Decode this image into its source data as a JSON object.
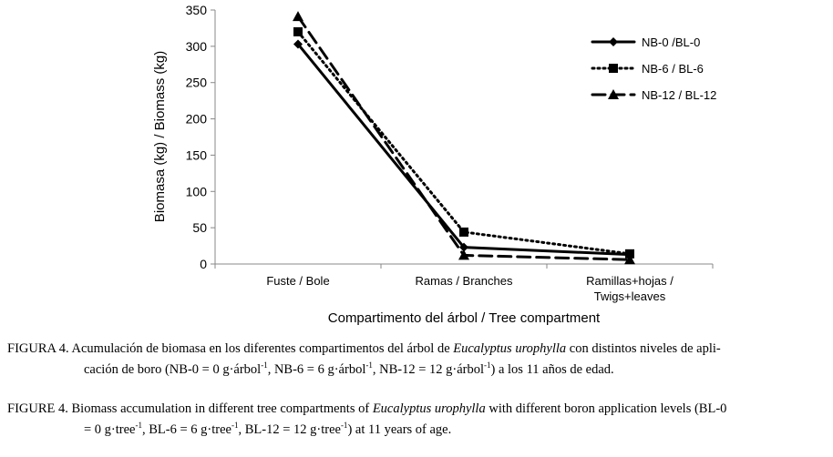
{
  "chart_data": {
    "type": "line",
    "categories": [
      "Fuste / Bole",
      "Ramas / Branches",
      "Ramillas+hojas / Twigs+leaves"
    ],
    "category_lines": [
      [
        "Fuste / Bole"
      ],
      [
        "Ramas / Branches"
      ],
      [
        "Ramillas+hojas /",
        "Twigs+leaves"
      ]
    ],
    "series": [
      {
        "name": "NB-0 /BL-0",
        "values": [
          303,
          23,
          13
        ],
        "marker": "diamond",
        "dash": "solid"
      },
      {
        "name": "NB-6 / BL-6",
        "values": [
          320,
          44,
          14
        ],
        "marker": "square",
        "dash": "dotted"
      },
      {
        "name": "NB-12 / BL-12",
        "values": [
          341,
          12,
          6
        ],
        "marker": "triangle",
        "dash": "dashed"
      }
    ],
    "xlabel": "Compartimento del árbol / Tree compartment",
    "ylabel": "Biomasa (kg) / Biomass (kg)",
    "ylim": [
      0,
      350
    ],
    "yticks": [
      0,
      50,
      100,
      150,
      200,
      250,
      300,
      350
    ],
    "grid": false,
    "legend_position": "top-right",
    "line_color": "#000000"
  },
  "caption_es": {
    "lead": "FIGURA 4. Acumulación de biomasa en los diferentes compartimentos del árbol de ",
    "species": "Eucalyptus urophylla",
    "tail": " con distintos niveles de apli-",
    "line2_a": "cación de boro (NB-0 = 0 g·árbol",
    "line2_b": ", NB-6 = 6 g·árbol",
    "line2_c": ", NB-12 = 12 g·árbol",
    "line2_d": ") a los 11 años de edad.",
    "sup": "-1"
  },
  "caption_en": {
    "lead": "FIGURE 4. Biomass accumulation in different tree compartments of ",
    "species": "Eucalyptus urophylla",
    "tail": " with different boron application levels (BL-0",
    "line2_a": "= 0 g·tree",
    "line2_b": ", BL-6 = 6 g·tree",
    "line2_c": ", BL-12 = 12 g·tree",
    "line2_d": ") at 11 years of age.",
    "sup": "-1"
  }
}
